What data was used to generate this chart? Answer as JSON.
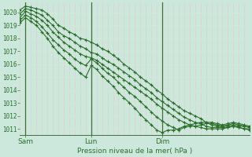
{
  "title": "",
  "xlabel": "Pression niveau de la mer( hPa )",
  "ylabel": "",
  "bg_color": "#cce8dc",
  "grid_color_v": "#e8c8c8",
  "grid_color_h": "#e0ede8",
  "line_color": "#2d6e2d",
  "marker": "+",
  "markersize": 3,
  "linewidth": 0.8,
  "ylim": [
    1010.5,
    1020.8
  ],
  "xlim": [
    0,
    84
  ],
  "yticks": [
    1011,
    1012,
    1013,
    1014,
    1015,
    1016,
    1017,
    1018,
    1019,
    1020
  ],
  "xtick_positions": [
    2,
    26,
    52
  ],
  "xtick_labels": [
    "Sam",
    "Lun",
    "Dim"
  ],
  "day_lines": [
    2,
    26,
    52
  ],
  "grid_v_step": 4,
  "grid_h_color": "#e8eee8",
  "series": [
    [
      0,
      1020.2,
      2,
      1020.5,
      4,
      1020.4,
      6,
      1020.3,
      8,
      1020.2,
      10,
      1019.9,
      12,
      1019.5,
      14,
      1019.0,
      16,
      1018.8,
      18,
      1018.5,
      20,
      1018.3,
      22,
      1018.0,
      24,
      1017.9,
      26,
      1017.7,
      28,
      1017.5,
      30,
      1017.2,
      32,
      1017.0,
      34,
      1016.7,
      36,
      1016.4,
      38,
      1016.0,
      40,
      1015.7,
      42,
      1015.4,
      44,
      1015.0,
      46,
      1014.7,
      48,
      1014.4,
      50,
      1014.0,
      52,
      1013.7,
      54,
      1013.3,
      56,
      1013.0,
      58,
      1012.7,
      60,
      1012.4,
      62,
      1012.2,
      64,
      1012.0,
      66,
      1011.8,
      68,
      1011.5,
      70,
      1011.3,
      72,
      1011.2,
      74,
      1011.2,
      76,
      1011.2,
      78,
      1011.3,
      80,
      1011.2,
      82,
      1011.2,
      84,
      1011.1
    ],
    [
      0,
      1019.9,
      2,
      1020.3,
      4,
      1020.2,
      6,
      1020.0,
      8,
      1019.8,
      10,
      1019.4,
      12,
      1019.0,
      14,
      1018.5,
      16,
      1018.2,
      18,
      1018.0,
      20,
      1017.7,
      22,
      1017.4,
      24,
      1017.2,
      26,
      1016.9,
      28,
      1016.8,
      30,
      1016.5,
      32,
      1016.2,
      34,
      1016.0,
      36,
      1015.7,
      38,
      1015.4,
      40,
      1015.1,
      42,
      1014.8,
      44,
      1014.4,
      46,
      1014.1,
      48,
      1013.8,
      50,
      1013.4,
      52,
      1013.1,
      54,
      1012.8,
      56,
      1012.5,
      58,
      1012.2,
      60,
      1011.9,
      62,
      1011.7,
      64,
      1011.5,
      66,
      1011.4,
      68,
      1011.2,
      70,
      1011.1,
      72,
      1011.1,
      74,
      1011.1,
      76,
      1011.1,
      78,
      1011.2,
      80,
      1011.1,
      82,
      1011.0,
      84,
      1011.0
    ],
    [
      0,
      1019.6,
      2,
      1020.1,
      4,
      1019.9,
      6,
      1019.7,
      8,
      1019.4,
      10,
      1019.0,
      12,
      1018.5,
      14,
      1018.1,
      16,
      1017.7,
      18,
      1017.4,
      20,
      1017.1,
      22,
      1016.8,
      24,
      1016.6,
      26,
      1016.5,
      28,
      1016.3,
      30,
      1016.0,
      32,
      1015.7,
      34,
      1015.4,
      36,
      1015.1,
      38,
      1014.8,
      40,
      1014.5,
      42,
      1014.2,
      44,
      1013.9,
      46,
      1013.6,
      48,
      1013.3,
      50,
      1012.9,
      52,
      1012.6,
      54,
      1012.3,
      56,
      1012.0,
      58,
      1011.7,
      60,
      1011.5,
      62,
      1011.3,
      64,
      1011.2,
      66,
      1011.1,
      68,
      1011.0,
      70,
      1011.0,
      72,
      1011.0,
      74,
      1011.0,
      76,
      1011.1,
      78,
      1011.2,
      80,
      1011.1,
      82,
      1011.0,
      84,
      1010.9
    ],
    [
      0,
      1019.4,
      2,
      1019.8,
      4,
      1019.6,
      6,
      1019.3,
      8,
      1018.9,
      10,
      1018.4,
      12,
      1017.9,
      14,
      1017.5,
      16,
      1017.1,
      18,
      1016.8,
      20,
      1016.4,
      22,
      1016.1,
      24,
      1015.9,
      26,
      1016.4,
      28,
      1016.1,
      30,
      1015.7,
      32,
      1015.3,
      34,
      1015.0,
      36,
      1014.6,
      38,
      1014.2,
      40,
      1013.8,
      42,
      1013.5,
      44,
      1013.1,
      46,
      1012.7,
      48,
      1012.3,
      50,
      1011.9,
      52,
      1011.6,
      54,
      1011.3,
      56,
      1011.1,
      58,
      1010.9,
      60,
      1011.1,
      62,
      1011.2,
      64,
      1011.2,
      66,
      1011.3,
      68,
      1011.4,
      70,
      1011.4,
      72,
      1011.3,
      74,
      1011.2,
      76,
      1011.3,
      78,
      1011.4,
      80,
      1011.3,
      82,
      1011.2,
      84,
      1011.1
    ],
    [
      0,
      1019.2,
      2,
      1019.6,
      4,
      1019.3,
      6,
      1019.0,
      8,
      1018.5,
      10,
      1018.0,
      12,
      1017.4,
      14,
      1016.9,
      16,
      1016.5,
      18,
      1016.1,
      20,
      1015.7,
      22,
      1015.3,
      24,
      1015.0,
      26,
      1015.9,
      28,
      1015.6,
      30,
      1015.1,
      32,
      1014.7,
      34,
      1014.3,
      36,
      1013.8,
      38,
      1013.4,
      40,
      1013.0,
      42,
      1012.6,
      44,
      1012.1,
      46,
      1011.7,
      48,
      1011.3,
      50,
      1010.9,
      52,
      1010.7,
      54,
      1010.9,
      56,
      1010.9,
      58,
      1011.0,
      60,
      1011.2,
      62,
      1011.3,
      64,
      1011.4,
      66,
      1011.5,
      68,
      1011.5,
      70,
      1011.5,
      72,
      1011.4,
      74,
      1011.3,
      76,
      1011.4,
      78,
      1011.5,
      80,
      1011.4,
      82,
      1011.3,
      84,
      1011.2
    ]
  ]
}
